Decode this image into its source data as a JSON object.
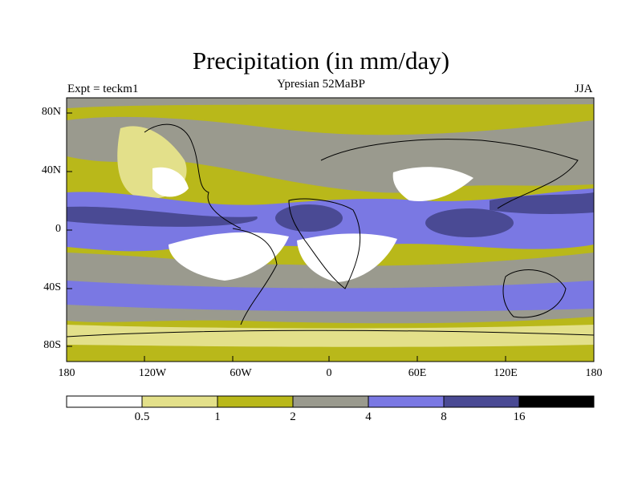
{
  "header": {
    "title": "Precipitation (in mm/day)",
    "left_label": "Expt = teckm1",
    "center_label": "Ypresian  52MaBP",
    "right_label": "JJA"
  },
  "map": {
    "y_ticks": [
      "80N",
      "40N",
      "0",
      "40S",
      "80S"
    ],
    "x_ticks": [
      "180",
      "120W",
      "60W",
      "0",
      "60E",
      "120E",
      "180"
    ]
  },
  "colorbar": {
    "labels": [
      "0.5",
      "1",
      "2",
      "4",
      "8",
      "16"
    ],
    "colors": [
      "#ffffff",
      "#e3e08a",
      "#b9b81a",
      "#9a9a8e",
      "#7a78e3",
      "#4a4a94",
      "#000000"
    ]
  },
  "colors": {
    "bg_olive": "#b9b81a",
    "light_olive": "#e3e08a",
    "gray": "#9a9a8e",
    "blue": "#7a78e3",
    "dark_blue": "#4a4a94",
    "white": "#ffffff"
  }
}
